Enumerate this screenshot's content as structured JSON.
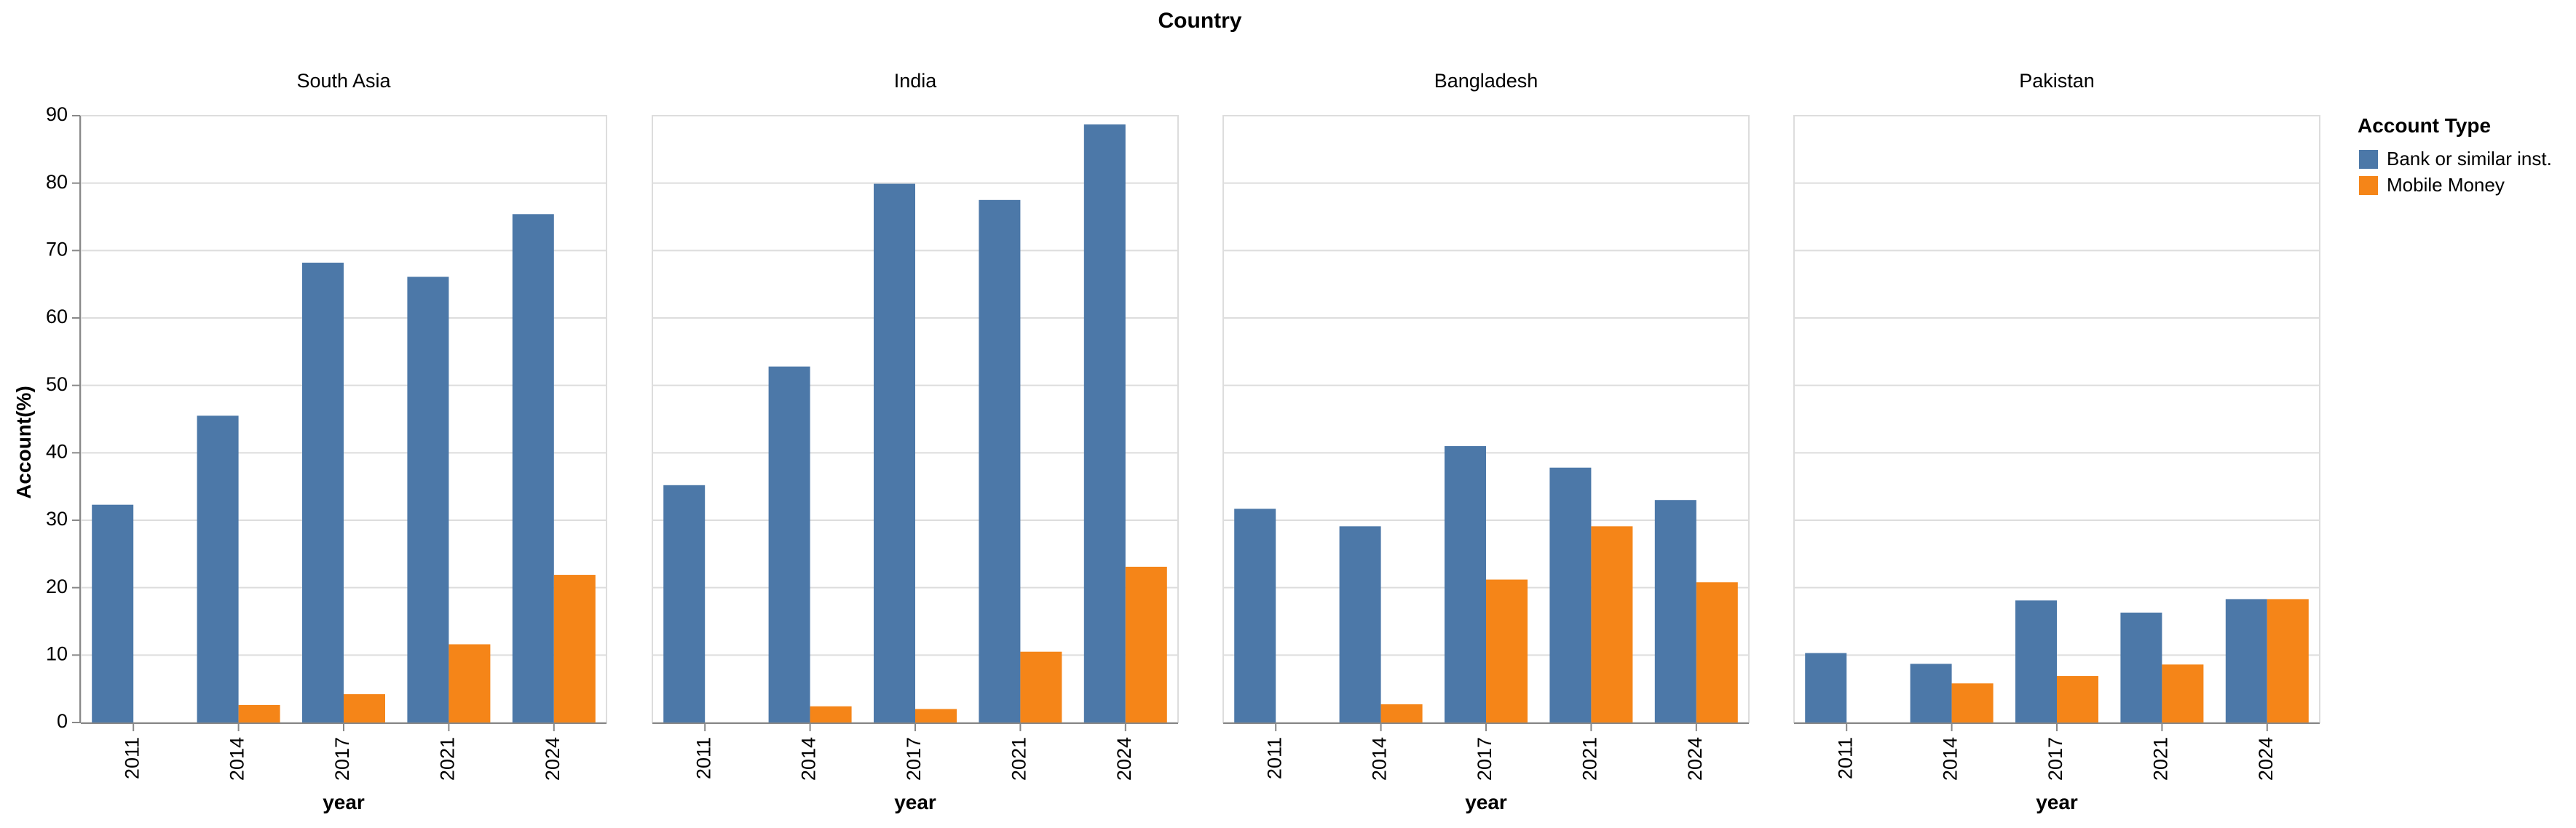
{
  "chart_data": {
    "type": "bar",
    "title": "Country",
    "ylabel": "Account(%)",
    "xlabel": "year",
    "ylim": [
      0,
      90
    ],
    "yticks": [
      0,
      10,
      20,
      30,
      40,
      50,
      60,
      70,
      80,
      90
    ],
    "categories": [
      "2011",
      "2014",
      "2017",
      "2021",
      "2024"
    ],
    "grid": true,
    "legend": {
      "title": "Account Type",
      "placement": "right",
      "entries": [
        {
          "name": "Bank or similar inst.",
          "color": "#4c78a8"
        },
        {
          "name": "Mobile Money",
          "color": "#f58518"
        }
      ]
    },
    "facets": [
      {
        "name": "South Asia",
        "series": [
          {
            "name": "Bank or similar inst.",
            "values": [
              32.3,
              45.5,
              68.2,
              66.1,
              75.4
            ]
          },
          {
            "name": "Mobile Money",
            "values": [
              null,
              2.6,
              4.2,
              11.6,
              21.9
            ]
          }
        ]
      },
      {
        "name": "India",
        "series": [
          {
            "name": "Bank or similar inst.",
            "values": [
              35.2,
              52.8,
              79.9,
              77.5,
              88.7
            ]
          },
          {
            "name": "Mobile Money",
            "values": [
              null,
              2.4,
              2.0,
              10.5,
              23.1
            ]
          }
        ]
      },
      {
        "name": "Bangladesh",
        "series": [
          {
            "name": "Bank or similar inst.",
            "values": [
              31.7,
              29.1,
              41.0,
              37.8,
              33.0
            ]
          },
          {
            "name": "Mobile Money",
            "values": [
              null,
              2.7,
              21.2,
              29.1,
              20.8
            ]
          }
        ]
      },
      {
        "name": "Pakistan",
        "series": [
          {
            "name": "Bank or similar inst.",
            "values": [
              10.3,
              8.7,
              18.1,
              16.3,
              18.3
            ]
          },
          {
            "name": "Mobile Money",
            "values": [
              null,
              5.8,
              6.9,
              8.6,
              18.3
            ]
          }
        ]
      }
    ]
  }
}
